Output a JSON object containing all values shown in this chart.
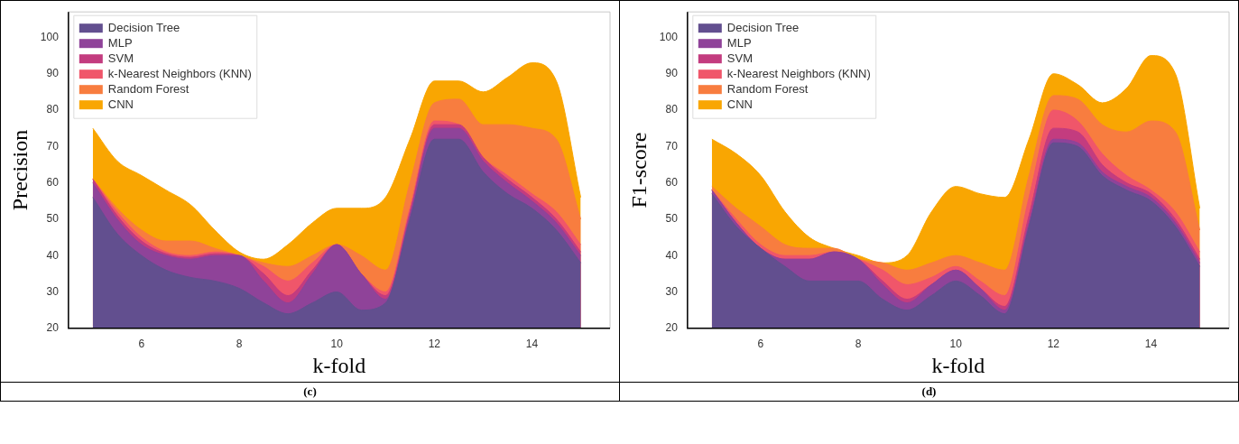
{
  "chart_data": [
    {
      "type": "area",
      "xlabel": "k-fold",
      "ylabel": "Precision",
      "xlim": [
        4.5,
        15.6
      ],
      "ylim": [
        20,
        107
      ],
      "xticks": [
        6,
        8,
        10,
        12,
        14
      ],
      "yticks": [
        20,
        30,
        40,
        50,
        60,
        70,
        80,
        90,
        100
      ],
      "legend": "top left",
      "annotations": [
        "(c)"
      ],
      "x": [
        5,
        5.5,
        6,
        6.5,
        7,
        7.5,
        8,
        8.5,
        9,
        9.5,
        10,
        10.5,
        11,
        11.5,
        12,
        12.5,
        13,
        13.5,
        14,
        14.5,
        15
      ],
      "series": [
        {
          "name": "Decision Tree",
          "color": "#624f8f",
          "values": [
            56,
            46,
            40,
            36,
            34,
            33,
            31,
            27,
            24,
            27,
            30,
            25,
            27,
            50,
            72,
            72,
            63,
            57,
            53,
            47,
            38
          ]
        },
        {
          "name": "MLP",
          "color": "#8f4399",
          "values": [
            60,
            50,
            43,
            40,
            39,
            40,
            40,
            33,
            27,
            35,
            43,
            35,
            28,
            51,
            75,
            75,
            66,
            60,
            55,
            49,
            40
          ]
        },
        {
          "name": "SVM",
          "color": "#c33c7f",
          "values": [
            61,
            51,
            44,
            40.5,
            39.5,
            40.5,
            40,
            35,
            29,
            36,
            43,
            35,
            29,
            52,
            76,
            76,
            67,
            61,
            56,
            50,
            41
          ]
        },
        {
          "name": "k-Nearest Neighbors (KNN)",
          "color": "#f0566a",
          "values": [
            61,
            52,
            45,
            41,
            40,
            41,
            40,
            37,
            33,
            38,
            43,
            35,
            30,
            53,
            77,
            76,
            67,
            62,
            57,
            52,
            43
          ]
        },
        {
          "name": "Random Forest",
          "color": "#f87d3f",
          "values": [
            61,
            53,
            47,
            44,
            44,
            42,
            40,
            38,
            37,
            40,
            43,
            40,
            36,
            60,
            82,
            83,
            76,
            76,
            75,
            72,
            50
          ]
        },
        {
          "name": "CNN",
          "color": "#f9a602",
          "values": [
            75,
            66,
            62,
            58,
            54,
            47,
            41,
            39,
            43,
            49,
            53,
            53,
            56,
            72,
            88,
            88,
            85,
            89,
            93,
            88,
            56
          ]
        }
      ]
    },
    {
      "type": "area",
      "xlabel": "k-fold",
      "ylabel": "F1-score",
      "xlim": [
        4.5,
        15.6
      ],
      "ylim": [
        20,
        107
      ],
      "xticks": [
        6,
        8,
        10,
        12,
        14
      ],
      "yticks": [
        20,
        30,
        40,
        50,
        60,
        70,
        80,
        90,
        100
      ],
      "legend": "top left",
      "annotations": [
        "(d)"
      ],
      "x": [
        5,
        5.5,
        6,
        6.5,
        7,
        7.5,
        8,
        8.5,
        9,
        9.5,
        10,
        10.5,
        11,
        11.5,
        12,
        12.5,
        13,
        13.5,
        14,
        14.5,
        15
      ],
      "series": [
        {
          "name": "Decision Tree",
          "color": "#624f8f",
          "values": [
            57,
            48,
            42,
            37,
            33,
            33,
            33,
            28,
            25,
            29,
            33,
            29,
            24,
            48,
            71,
            70,
            62,
            58,
            55,
            48,
            37
          ]
        },
        {
          "name": "MLP",
          "color": "#8f4399",
          "values": [
            58,
            49,
            42,
            39,
            39,
            41,
            39,
            32,
            27,
            32,
            36,
            31,
            25,
            49,
            72,
            71,
            63,
            59,
            56,
            49,
            38
          ]
        },
        {
          "name": "SVM",
          "color": "#c33c7f",
          "values": [
            58,
            49,
            42,
            39,
            39,
            41,
            39,
            33,
            28,
            32,
            36,
            31,
            26,
            51,
            75,
            74,
            65,
            60,
            57,
            50,
            39
          ]
        },
        {
          "name": "k-Nearest Neighbors (KNN)",
          "color": "#f0566a",
          "values": [
            58,
            50,
            43,
            40,
            40,
            41,
            39,
            36,
            32,
            34,
            37,
            33,
            29,
            56,
            80,
            77,
            68,
            62,
            58,
            52,
            41
          ]
        },
        {
          "name": "Random Forest",
          "color": "#f87d3f",
          "values": [
            59,
            53,
            48,
            43,
            42,
            42,
            39,
            38,
            36,
            38,
            40,
            38,
            36,
            62,
            84,
            83,
            76,
            74,
            77,
            74,
            47
          ]
        },
        {
          "name": "CNN",
          "color": "#f9a602",
          "values": [
            72,
            68,
            62,
            52,
            45,
            42,
            40,
            38,
            40,
            52,
            59,
            57,
            56,
            72,
            90,
            87,
            82,
            86,
            95,
            90,
            53
          ]
        }
      ]
    }
  ]
}
